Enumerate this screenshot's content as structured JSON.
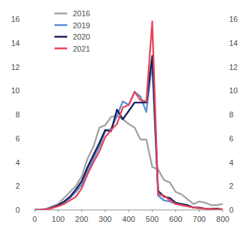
{
  "chart_data": {
    "type": "line",
    "x": [
      0,
      25,
      50,
      75,
      100,
      125,
      150,
      175,
      200,
      225,
      250,
      275,
      300,
      325,
      350,
      375,
      400,
      425,
      450,
      475,
      500,
      525,
      550,
      575,
      600,
      625,
      650,
      675,
      700,
      725,
      750,
      775,
      800
    ],
    "series": [
      {
        "name": "2016",
        "color": "#a3a3a3",
        "values": [
          0,
          0,
          0.1,
          0.3,
          0.5,
          1.0,
          1.5,
          2.0,
          2.8,
          4.3,
          5.3,
          6.9,
          7.1,
          7.8,
          7.9,
          7.6,
          7.2,
          6.9,
          5.9,
          5.9,
          3.6,
          3.4,
          2.5,
          2.3,
          1.5,
          1.3,
          0.9,
          0.5,
          0.7,
          0.6,
          0.4,
          0.4,
          0.5
        ]
      },
      {
        "name": "2019",
        "color": "#5b8fd2",
        "values": [
          0,
          0,
          0.05,
          0.2,
          0.4,
          0.6,
          1.0,
          1.5,
          2.1,
          3.3,
          4.3,
          5.3,
          6.6,
          6.8,
          7.9,
          9.1,
          8.8,
          9.9,
          9.5,
          8.2,
          12.3,
          1.2,
          0.8,
          0.7,
          0.5,
          0.4,
          0.3,
          0.2,
          0.15,
          0.1,
          0.1,
          0.05,
          0.05
        ]
      },
      {
        "name": "2020",
        "color": "#1b1f5c",
        "values": [
          0,
          0,
          0.05,
          0.2,
          0.4,
          0.7,
          1.1,
          1.7,
          2.4,
          3.6,
          4.6,
          5.6,
          6.7,
          6.6,
          8.4,
          7.6,
          8.3,
          9.0,
          9.0,
          9.0,
          12.9,
          1.6,
          1.1,
          1.0,
          0.6,
          0.5,
          0.4,
          0.2,
          0.2,
          0.1,
          0.1,
          0.1,
          0.05
        ]
      },
      {
        "name": "2021",
        "color": "#e6475b",
        "values": [
          0,
          0,
          0.05,
          0.15,
          0.3,
          0.5,
          0.8,
          1.1,
          1.8,
          3.0,
          4.0,
          4.9,
          6.1,
          6.7,
          7.2,
          8.6,
          8.8,
          9.9,
          9.2,
          9.1,
          15.8,
          1.3,
          1.2,
          0.8,
          0.5,
          0.4,
          0.3,
          0.2,
          0.15,
          0.1,
          0.1,
          0.05,
          0.05
        ]
      }
    ],
    "xlim": [
      0,
      800
    ],
    "xticks": [
      0,
      100,
      200,
      300,
      400,
      500,
      600,
      700,
      800
    ],
    "ylim": [
      0,
      16
    ],
    "yticks": [
      0,
      2,
      4,
      6,
      8,
      10,
      12,
      14,
      16
    ],
    "y2lim": [
      0,
      16
    ],
    "y2ticks": [
      0,
      2,
      4,
      6,
      8,
      10,
      12,
      14,
      16
    ],
    "grid": false,
    "legend": "top-left"
  }
}
